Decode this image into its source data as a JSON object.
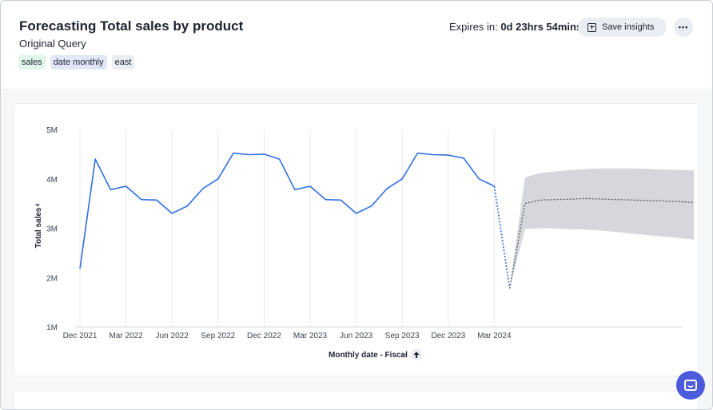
{
  "header": {
    "title": "Forecasting Total sales by product",
    "subtitle": "Original Query",
    "chips": [
      "sales",
      "date monthly",
      "east"
    ],
    "expires_label": "Expires in:",
    "expires_value": "0d 23hrs 54mins",
    "save_label": "Save insights",
    "more_label": "•••"
  },
  "icons": {
    "save": "save-insights-icon",
    "more": "more-options-icon",
    "sort": "sort-ascending-icon",
    "dropdown": "chevron-down-icon",
    "chat": "chat-icon"
  },
  "colors": {
    "series": "#2e6ee0",
    "forecast_band": "#d5d7dc",
    "forecast_line": "#555a63",
    "accent": "#4b5bdc"
  },
  "chart_data": {
    "type": "line",
    "title": "",
    "xlabel": "Monthly date - Fiscal",
    "ylabel": "Total sales",
    "ylim": [
      1000000,
      5000000
    ],
    "y_ticks": [
      "5M",
      "4M",
      "3M",
      "2M",
      "1M"
    ],
    "x_tick_labels": [
      "Dec 2021",
      "Mar 2022",
      "Jun 2022",
      "Sep 2022",
      "Dec 2022",
      "Mar 2023",
      "Jun 2023",
      "Sep 2023",
      "Dec 2023",
      "Mar 2024"
    ],
    "series": [
      {
        "name": "Total sales",
        "x": [
          0,
          1,
          2,
          3,
          4,
          5,
          6,
          7,
          8,
          9,
          10,
          11,
          12,
          13,
          14,
          15,
          16,
          17,
          18,
          19,
          20,
          21,
          22,
          23,
          24,
          25,
          26,
          27
        ],
        "values": [
          2180000,
          4400000,
          3780000,
          3850000,
          3580000,
          3570000,
          3300000,
          3450000,
          3800000,
          4000000,
          4520000,
          4490000,
          4500000,
          4400000,
          3780000,
          3850000,
          3580000,
          3570000,
          3300000,
          3450000,
          3800000,
          4000000,
          4520000,
          4490000,
          4480000,
          4420000,
          4000000,
          3850000
        ]
      }
    ],
    "forecast": {
      "x": [
        27,
        28,
        29,
        30,
        31,
        32,
        33,
        34,
        35,
        36,
        37,
        38,
        39,
        40
      ],
      "values": [
        3850000,
        1780000,
        3500000,
        3570000,
        3580000,
        3590000,
        3600000,
        3590000,
        3580000,
        3570000,
        3560000,
        3550000,
        3540000,
        3520000
      ],
      "upper": [
        3850000,
        1780000,
        4030000,
        4120000,
        4150000,
        4180000,
        4200000,
        4210000,
        4210000,
        4210000,
        4200000,
        4190000,
        4180000,
        4170000
      ],
      "lower": [
        3850000,
        1780000,
        2980000,
        3000000,
        2990000,
        2980000,
        2970000,
        2950000,
        2920000,
        2890000,
        2860000,
        2830000,
        2800000,
        2770000
      ]
    }
  }
}
